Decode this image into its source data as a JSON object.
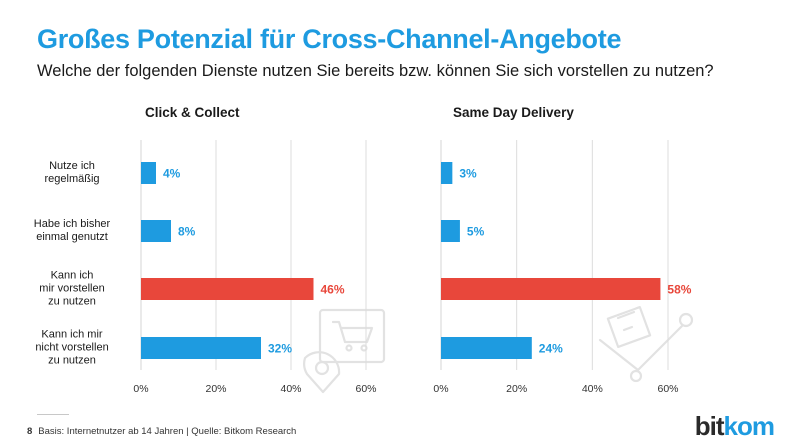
{
  "header": {
    "title": "Großes Potenzial für Cross-Channel-Angebote",
    "subtitle": "Welche der folgenden Dienste nutzen Sie bereits bzw. können Sie sich vorstellen zu nutzen?"
  },
  "categories": [
    [
      "Nutze ich",
      "regelmäßig"
    ],
    [
      "Habe ich bisher",
      "einmal genutzt"
    ],
    [
      "Kann ich",
      "mir vorstellen",
      "zu nutzen"
    ],
    [
      "Kann ich mir",
      "nicht vorstellen",
      "zu nutzen"
    ]
  ],
  "chart_data": [
    {
      "type": "bar",
      "orientation": "horizontal",
      "title": "Click & Collect",
      "categories": [
        "Nutze ich regelmäßig",
        "Habe ich bisher einmal genutzt",
        "Kann ich mir vorstellen zu nutzen",
        "Kann ich mir nicht vorstellen zu nutzen"
      ],
      "values": [
        4,
        8,
        46,
        32
      ],
      "value_labels": [
        "4%",
        "8%",
        "46%",
        "32%"
      ],
      "highlight_index": 2,
      "xlim": [
        0,
        60
      ],
      "xticks": [
        0,
        20,
        40,
        60
      ],
      "xtick_labels": [
        "0%",
        "20%",
        "40%",
        "60%"
      ],
      "grid": true
    },
    {
      "type": "bar",
      "orientation": "horizontal",
      "title": "Same Day Delivery",
      "categories": [
        "Nutze ich regelmäßig",
        "Habe ich bisher einmal genutzt",
        "Kann ich mir vorstellen zu nutzen",
        "Kann ich mir nicht vorstellen zu nutzen"
      ],
      "values": [
        3,
        5,
        58,
        24
      ],
      "value_labels": [
        "3%",
        "5%",
        "58%",
        "24%"
      ],
      "highlight_index": 2,
      "xlim": [
        0,
        60
      ],
      "xticks": [
        0,
        20,
        40,
        60
      ],
      "xtick_labels": [
        "0%",
        "20%",
        "40%",
        "60%"
      ],
      "grid": true
    }
  ],
  "colors": {
    "bar": "#1e9be0",
    "highlight": "#e8473b",
    "grid": "#dcdcdc",
    "title": "#1e9be0",
    "value_label_default": "#1e9be0",
    "value_label_highlight": "#e8473b"
  },
  "icons": [
    "shopping-cart-location-icon",
    "hand-truck-box-icon"
  ],
  "footer": {
    "page_number": "8",
    "source": "Basis: Internetnutzer ab 14 Jahren | Quelle: Bitkom Research",
    "logo_main": "bit",
    "logo_accent": "kom"
  }
}
